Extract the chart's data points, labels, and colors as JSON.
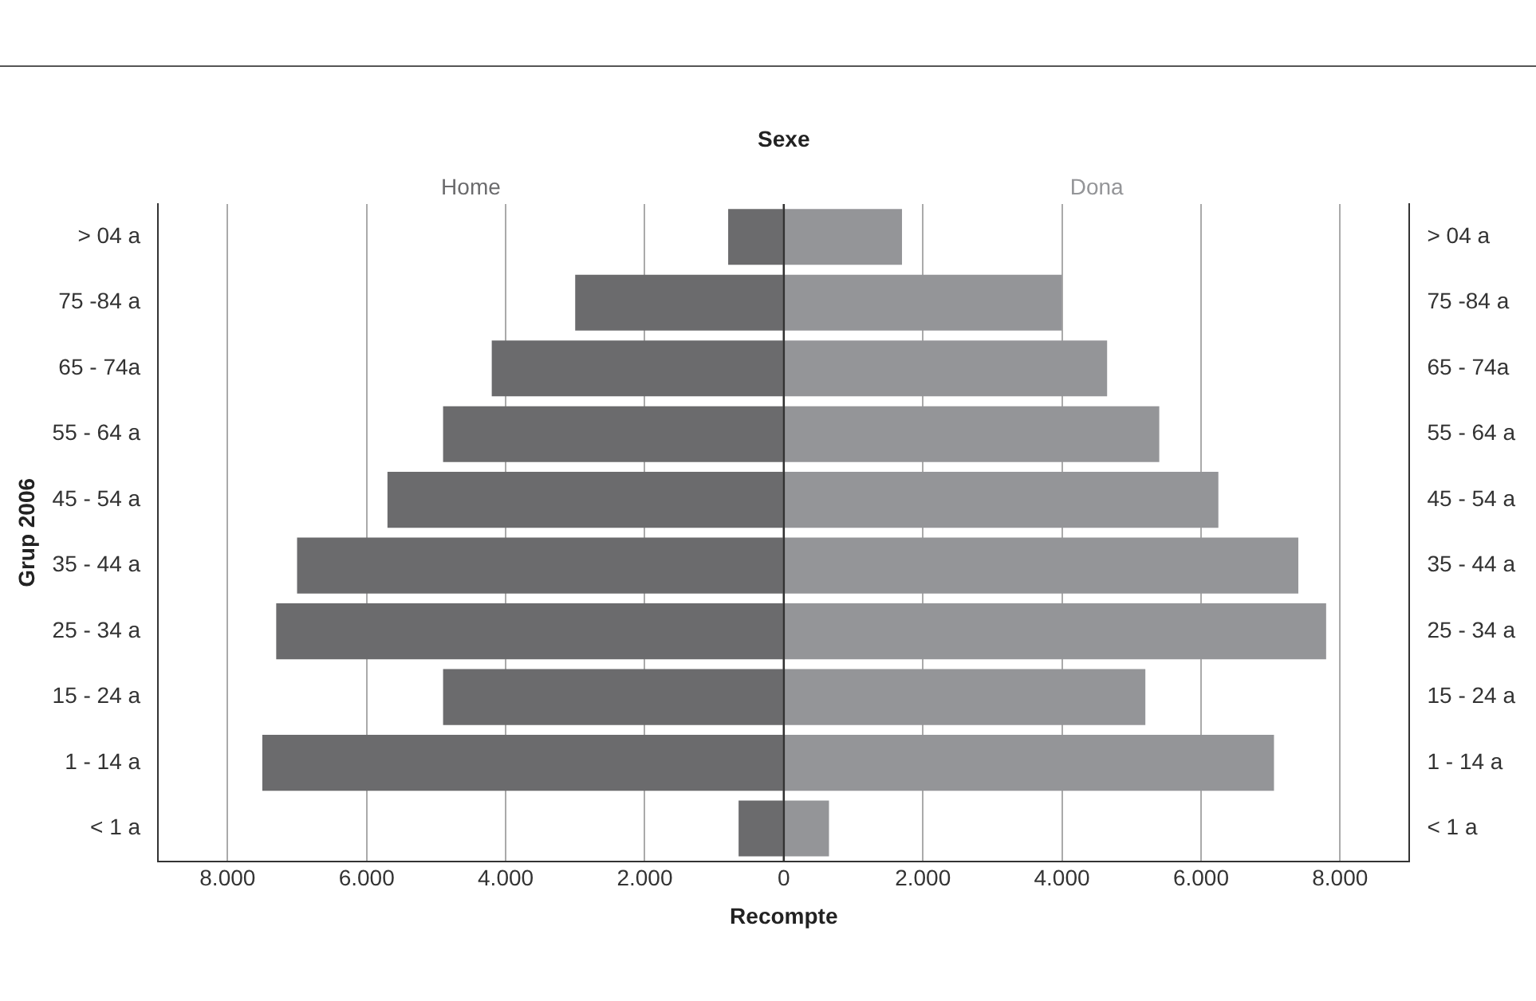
{
  "chart_data": {
    "type": "bar",
    "orientation": "horizontal",
    "stacked": true,
    "legend_title": "Sexe",
    "xlabel": "Recompte",
    "ylabel": "Grup 2006",
    "categories": [
      "> 04 a",
      "75 -84 a",
      "65 - 74a",
      "55 - 64 a",
      "45 - 54 a",
      "35 - 44 a",
      "25 - 34 a",
      "15 - 24 a",
      "1 - 14 a",
      "< 1 a"
    ],
    "series": [
      {
        "name": "Home",
        "color": "#6b6b6d",
        "values": [
          -800,
          -3000,
          -4200,
          -4900,
          -5700,
          -7000,
          -7300,
          -4900,
          -7500,
          -650
        ]
      },
      {
        "name": "Dona",
        "color": "#949598",
        "values": [
          1700,
          4000,
          4650,
          5400,
          6250,
          7400,
          7800,
          5200,
          7050,
          650
        ]
      }
    ],
    "xlim": [
      -9000,
      9000
    ],
    "xticks": [
      {
        "value": -8000,
        "label": "8.000"
      },
      {
        "value": -6000,
        "label": "6.000"
      },
      {
        "value": -4000,
        "label": "4.000"
      },
      {
        "value": -2000,
        "label": "2.000"
      },
      0,
      {
        "value": 2000,
        "label": "2.000"
      },
      {
        "value": 4000,
        "label": "4.000"
      },
      {
        "value": 6000,
        "label": "6.000"
      },
      {
        "value": 8000,
        "label": "8.000"
      }
    ],
    "grid": "x",
    "legend": false
  }
}
